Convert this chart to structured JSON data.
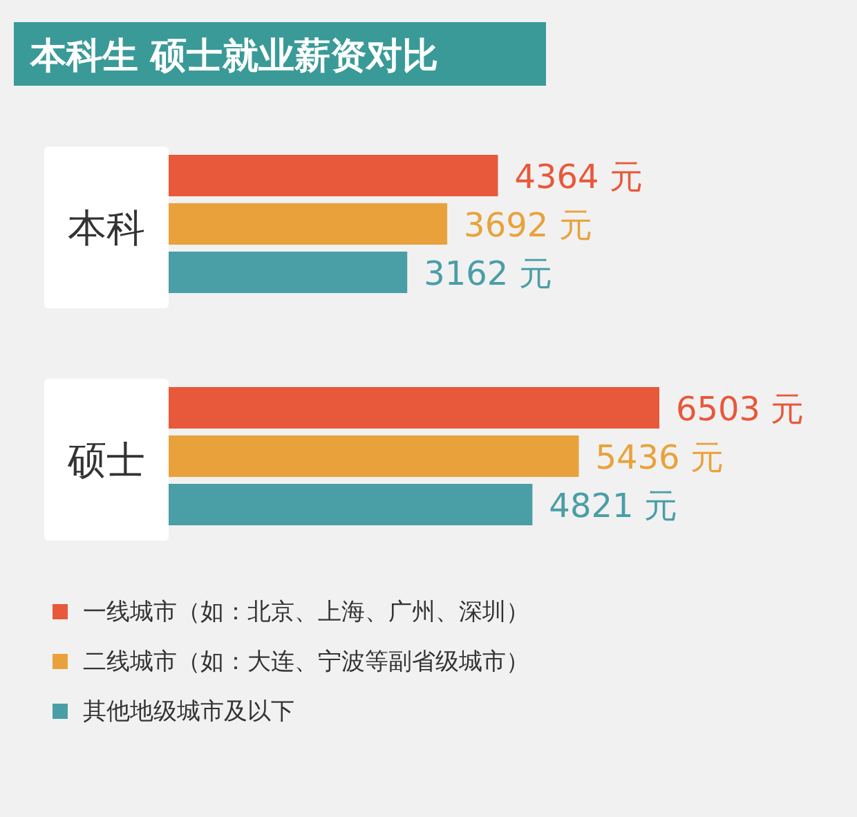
{
  "chart_data": {
    "type": "bar",
    "orientation": "horizontal",
    "title": "本科生 硕士就业薪资对比",
    "categories": [
      "本科",
      "硕士"
    ],
    "legend": "bottom",
    "series": [
      {
        "name": "一线城市（如：北京、上海、广州、深圳）",
        "color": "#e8583a",
        "values": [
          4364,
          6503
        ],
        "value_labels": [
          "4364 元",
          "6503 元"
        ]
      },
      {
        "name": "二线城市（如：大连、宁波等副省级城市）",
        "color": "#e9a23b",
        "values": [
          3692,
          5436
        ],
        "value_labels": [
          "3692 元",
          "5436 元"
        ]
      },
      {
        "name": "其他地级城市及以下",
        "color": "#4a9ea6",
        "values": [
          3162,
          4821
        ],
        "value_labels": [
          "3162 元",
          "4821 元"
        ]
      }
    ]
  }
}
